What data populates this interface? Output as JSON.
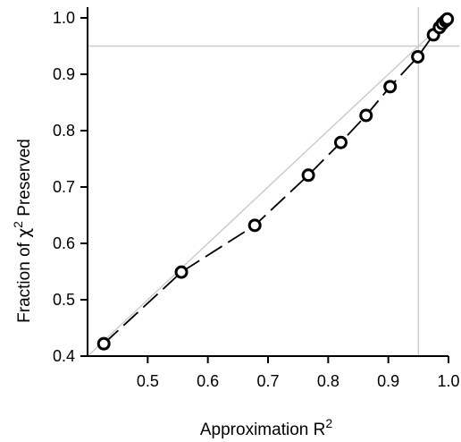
{
  "chart_data": {
    "type": "scatter",
    "xlabel": {
      "base": "Approximation R",
      "sup": "2"
    },
    "ylabel": {
      "pre": "Fraction of ",
      "symbol": "χ",
      "sup": "2",
      "post": " Preserved"
    },
    "xlim": [
      0.4,
      1.0
    ],
    "ylim": [
      0.4,
      1.0
    ],
    "x_ticks": [
      0.5,
      0.6,
      0.7,
      0.8,
      0.9,
      1.0
    ],
    "x_tick_labels": [
      "0.5",
      "0.6",
      "0.7",
      "0.8",
      "0.9",
      "1.0"
    ],
    "y_ticks": [
      0.4,
      0.5,
      0.6,
      0.7,
      0.8,
      0.9,
      1.0
    ],
    "y_tick_labels": [
      "0.4",
      "0.5",
      "0.6",
      "0.7",
      "0.8",
      "0.9",
      "1.0"
    ],
    "reference_lines": {
      "diagonal": true,
      "vertical_x": 0.95,
      "horizontal_y": 0.95
    },
    "colors": {
      "reference": "#cccccc",
      "series": "#000000"
    },
    "series": [
      {
        "marker": "open-circle",
        "line": "dashed",
        "x": [
          0.427,
          0.556,
          0.678,
          0.767,
          0.821,
          0.863,
          0.903,
          0.949,
          0.975,
          0.985,
          0.99,
          0.995,
          0.998
        ],
        "y": [
          0.422,
          0.549,
          0.632,
          0.721,
          0.779,
          0.827,
          0.878,
          0.931,
          0.97,
          0.983,
          0.99,
          0.995,
          0.998
        ]
      }
    ]
  }
}
